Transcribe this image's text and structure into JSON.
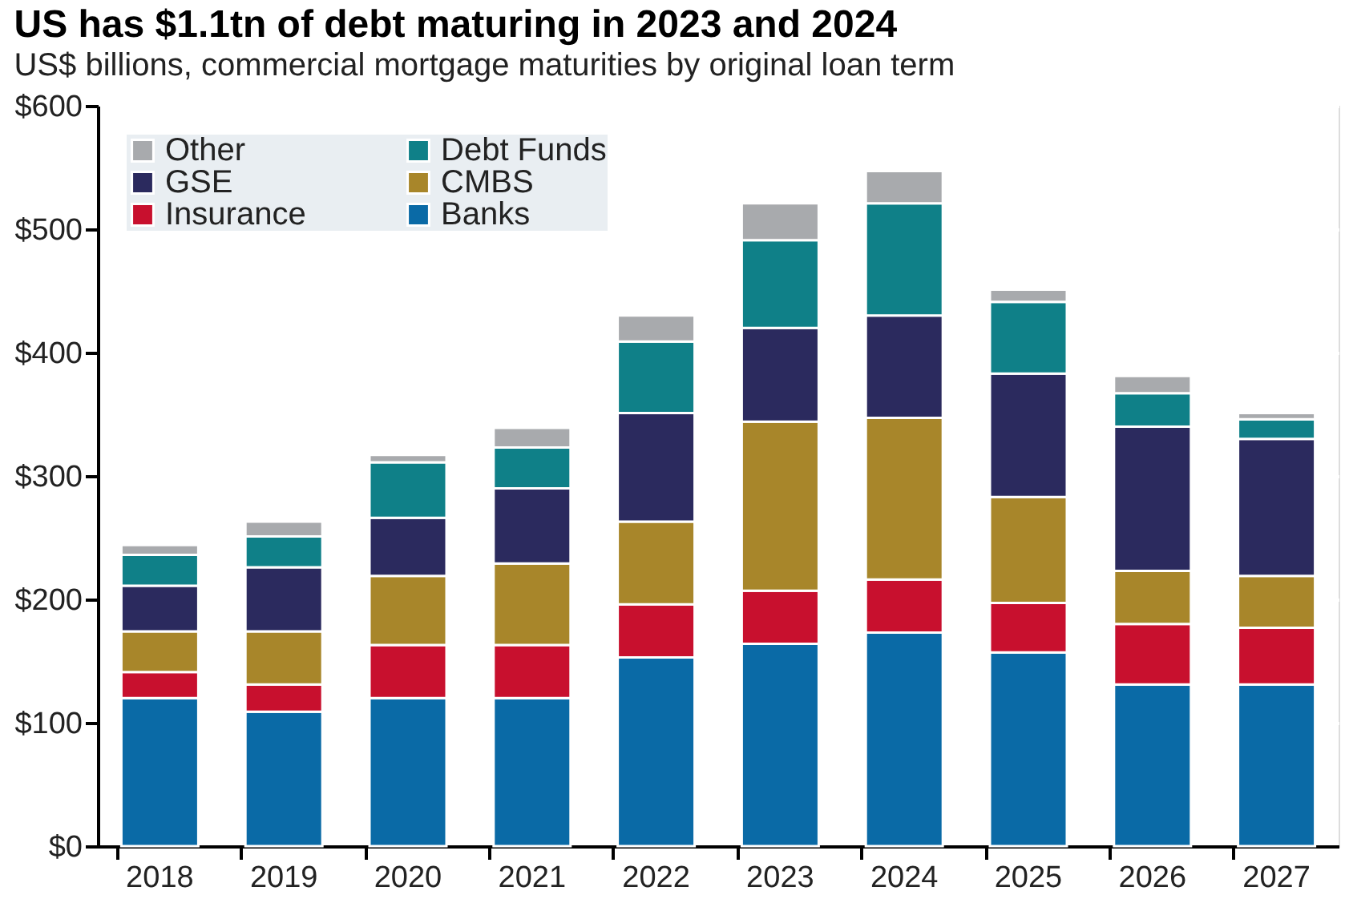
{
  "chart_data": {
    "type": "bar",
    "title": "US has $1.1tn of debt maturing in 2023 and 2024",
    "subtitle": "US$ billions, commercial mortgage maturities by original loan term",
    "categories": [
      "2018",
      "2019",
      "2020",
      "2021",
      "2022",
      "2023",
      "2024",
      "2025",
      "2026",
      "2027"
    ],
    "stacked": true,
    "series": [
      {
        "name": "Banks",
        "color": "#0a6aa6",
        "values": [
          120,
          109,
          120,
          120,
          153,
          164,
          173,
          157,
          131,
          131
        ]
      },
      {
        "name": "Insurance",
        "color": "#c8102e",
        "values": [
          21,
          22,
          43,
          43,
          43,
          43,
          43,
          40,
          49,
          46
        ]
      },
      {
        "name": "CMBS",
        "color": "#a8862a",
        "values": [
          33,
          43,
          56,
          66,
          67,
          137,
          131,
          86,
          43,
          42
        ]
      },
      {
        "name": "GSE",
        "color": "#2b2a5e",
        "values": [
          37,
          52,
          47,
          61,
          88,
          76,
          83,
          100,
          117,
          111
        ]
      },
      {
        "name": "Debt Funds",
        "color": "#0f8088",
        "values": [
          25,
          25,
          45,
          33,
          58,
          71,
          91,
          58,
          27,
          16
        ]
      },
      {
        "name": "Other",
        "color": "#a8aaad",
        "values": [
          8,
          12,
          6,
          16,
          21,
          30,
          26,
          10,
          14,
          5
        ]
      }
    ],
    "ylim": [
      0,
      600
    ],
    "yticks": [
      {
        "value": 0,
        "label": "$0"
      },
      {
        "value": 100,
        "label": "$100"
      },
      {
        "value": 200,
        "label": "$200"
      },
      {
        "value": 300,
        "label": "$300"
      },
      {
        "value": 400,
        "label": "$400"
      },
      {
        "value": 500,
        "label": "$500"
      },
      {
        "value": 600,
        "label": "$600"
      }
    ],
    "grid": "y",
    "legend": "top left"
  }
}
